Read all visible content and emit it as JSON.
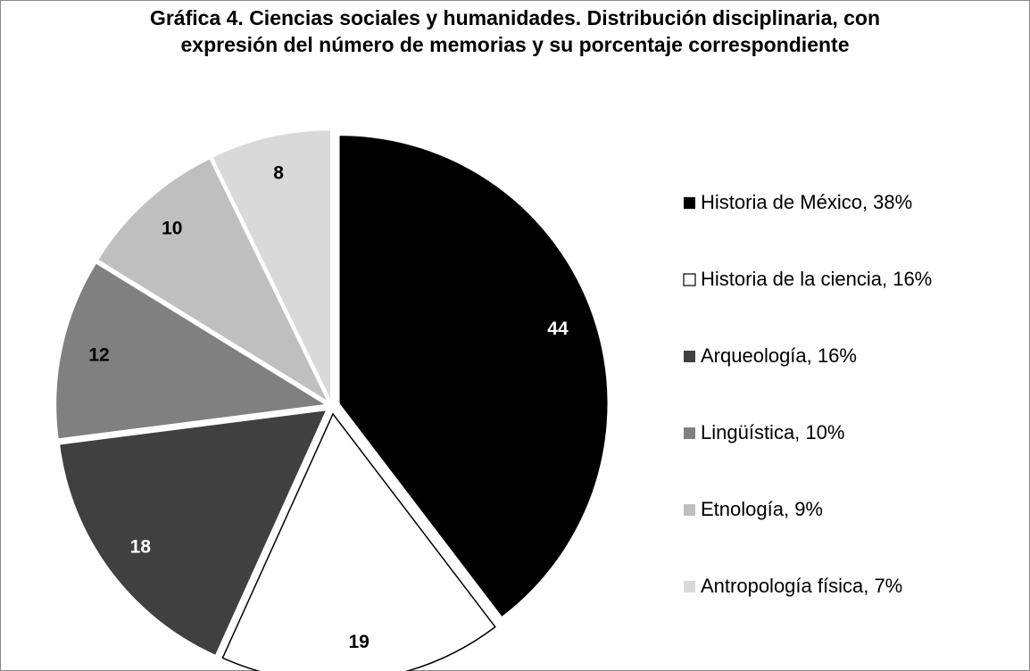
{
  "chart_data": {
    "type": "pie",
    "title": "Gráfica 4. Ciencias sociales y humanidades. Distribución disciplinaria, con expresión del número de memorias y su porcentaje correspondiente",
    "categories": [
      "Historia de México, 38%",
      "Historia de la ciencia, 16%",
      "Arqueología, 16%",
      "Lingüística, 10%",
      "Etnología, 9%",
      "Antropología física, 7%"
    ],
    "values": [
      44,
      19,
      18,
      12,
      10,
      8
    ],
    "colors": [
      "#000000",
      "#ffffff",
      "#404040",
      "#808080",
      "#bfbfbf",
      "#d9d9d9"
    ],
    "legend": "right"
  }
}
